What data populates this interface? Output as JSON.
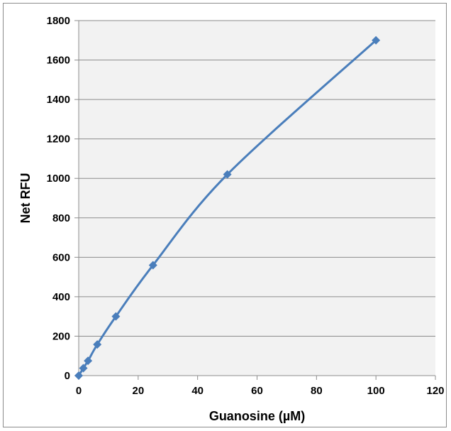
{
  "chart_data": {
    "type": "scatter",
    "title": "",
    "xlabel": "Guanosine (µM)",
    "ylabel": "Net RFU",
    "xlim": [
      0,
      120
    ],
    "ylim": [
      0,
      1800
    ],
    "x_ticks": [
      0,
      20,
      40,
      60,
      80,
      100,
      120
    ],
    "y_ticks": [
      0,
      200,
      400,
      600,
      800,
      1000,
      1200,
      1400,
      1600,
      1800
    ],
    "grid": "horizontal",
    "legend": "none",
    "colors": {
      "series": "#4a7ebb",
      "plot_background": "#f2f2f2",
      "gridline": "#8c8c8c"
    },
    "series": [
      {
        "marker": "diamond",
        "line": "smooth",
        "x": [
          0,
          1.56,
          3.13,
          6.25,
          12.5,
          25,
          50,
          100
        ],
        "y": [
          0,
          38,
          75,
          158,
          300,
          560,
          1020,
          1700
        ]
      }
    ]
  }
}
